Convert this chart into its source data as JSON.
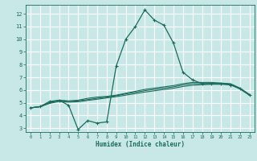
{
  "xlabel": "Humidex (Indice chaleur)",
  "xlim": [
    -0.5,
    23.5
  ],
  "ylim": [
    2.7,
    12.7
  ],
  "yticks": [
    3,
    4,
    5,
    6,
    7,
    8,
    9,
    10,
    11,
    12
  ],
  "xticks": [
    0,
    1,
    2,
    3,
    4,
    5,
    6,
    7,
    8,
    9,
    10,
    11,
    12,
    13,
    14,
    15,
    16,
    17,
    18,
    19,
    20,
    21,
    22,
    23
  ],
  "bg_color": "#c8e8e8",
  "grid_color": "#ffffff",
  "line_color": "#1a6b5a",
  "curve1_x": [
    0,
    1,
    2,
    3,
    4,
    5,
    6,
    7,
    8,
    9,
    10,
    11,
    12,
    13,
    14,
    15,
    16,
    17,
    18,
    19,
    20,
    21,
    22,
    23
  ],
  "curve1_y": [
    4.6,
    4.7,
    5.1,
    5.2,
    4.8,
    2.9,
    3.6,
    3.4,
    3.5,
    7.9,
    10.0,
    11.0,
    12.3,
    11.5,
    11.1,
    9.7,
    7.4,
    6.8,
    6.5,
    6.5,
    6.5,
    6.4,
    6.1,
    5.6
  ],
  "curve2_x": [
    0,
    1,
    2,
    3,
    4,
    5,
    6,
    7,
    8,
    9,
    10,
    11,
    12,
    13,
    14,
    15,
    16,
    17,
    18,
    19,
    20,
    21,
    22,
    23
  ],
  "curve2_y": [
    4.6,
    4.7,
    5.0,
    5.2,
    5.15,
    5.2,
    5.35,
    5.45,
    5.5,
    5.6,
    5.75,
    5.9,
    6.05,
    6.15,
    6.25,
    6.35,
    6.5,
    6.6,
    6.6,
    6.6,
    6.55,
    6.5,
    6.15,
    5.65
  ],
  "curve3_x": [
    0,
    1,
    2,
    3,
    4,
    5,
    6,
    7,
    8,
    9,
    10,
    11,
    12,
    13,
    14,
    15,
    16,
    17,
    18,
    19,
    20,
    21,
    22,
    23
  ],
  "curve3_y": [
    4.6,
    4.7,
    5.0,
    5.2,
    5.1,
    5.15,
    5.25,
    5.35,
    5.45,
    5.55,
    5.7,
    5.82,
    5.95,
    6.05,
    6.15,
    6.25,
    6.4,
    6.5,
    6.5,
    6.52,
    6.5,
    6.45,
    6.1,
    5.6
  ],
  "curve4_x": [
    0,
    1,
    2,
    3,
    4,
    5,
    6,
    7,
    8,
    9,
    10,
    11,
    12,
    13,
    14,
    15,
    16,
    17,
    18,
    19,
    20,
    21,
    22,
    23
  ],
  "curve4_y": [
    4.6,
    4.68,
    4.95,
    5.1,
    5.05,
    5.08,
    5.18,
    5.28,
    5.38,
    5.48,
    5.6,
    5.72,
    5.84,
    5.94,
    6.04,
    6.14,
    6.28,
    6.38,
    6.42,
    6.45,
    6.45,
    6.42,
    6.08,
    5.58
  ]
}
